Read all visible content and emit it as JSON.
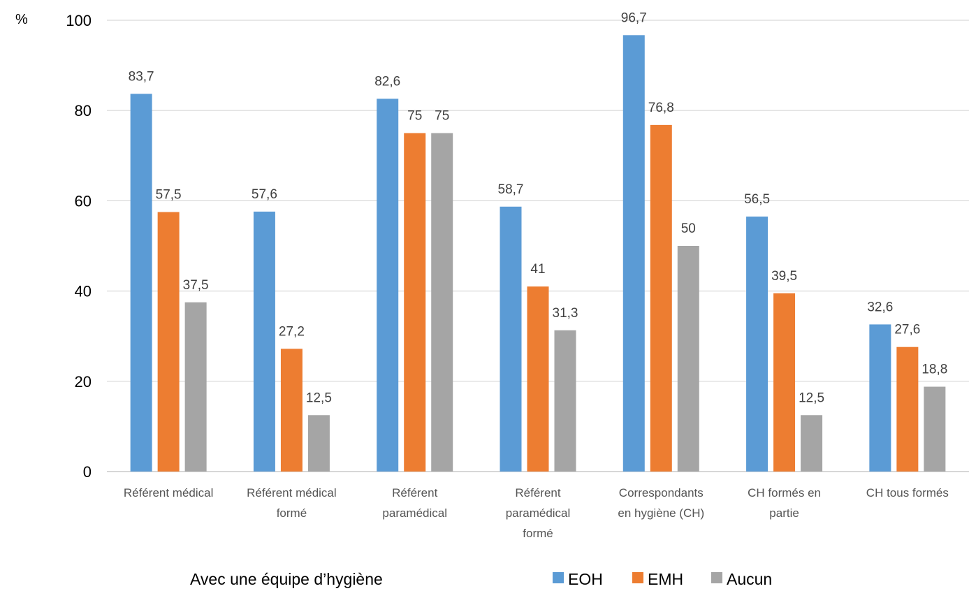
{
  "chart_data": {
    "type": "bar",
    "ylabel": "%",
    "ylim": [
      0,
      100
    ],
    "yticks": [
      0,
      20,
      40,
      60,
      80,
      100
    ],
    "grid": true,
    "legend_position": "bottom",
    "categories": [
      [
        "Référent médical"
      ],
      [
        "Référent médical",
        "formé"
      ],
      [
        "Référent",
        "paramédical"
      ],
      [
        "Référent",
        "paramédical",
        "formé"
      ],
      [
        "Correspondants",
        "en hygiène (CH)"
      ],
      [
        "CH formés en",
        "partie"
      ],
      [
        "CH tous formés"
      ]
    ],
    "series": [
      {
        "name": "EOH",
        "color": "#5B9BD5",
        "values": [
          83.7,
          57.6,
          82.6,
          58.7,
          96.7,
          56.5,
          32.6
        ]
      },
      {
        "name": "EMH",
        "color": "#ED7D31",
        "values": [
          57.5,
          27.2,
          75,
          41,
          76.8,
          39.5,
          27.6
        ]
      },
      {
        "name": "Aucun",
        "color": "#A5A5A5",
        "values": [
          37.5,
          12.5,
          75,
          31.3,
          50,
          12.5,
          18.8
        ]
      }
    ],
    "legend_caption": "Avec une équipe d’hygiène",
    "decimal_separator": ","
  }
}
